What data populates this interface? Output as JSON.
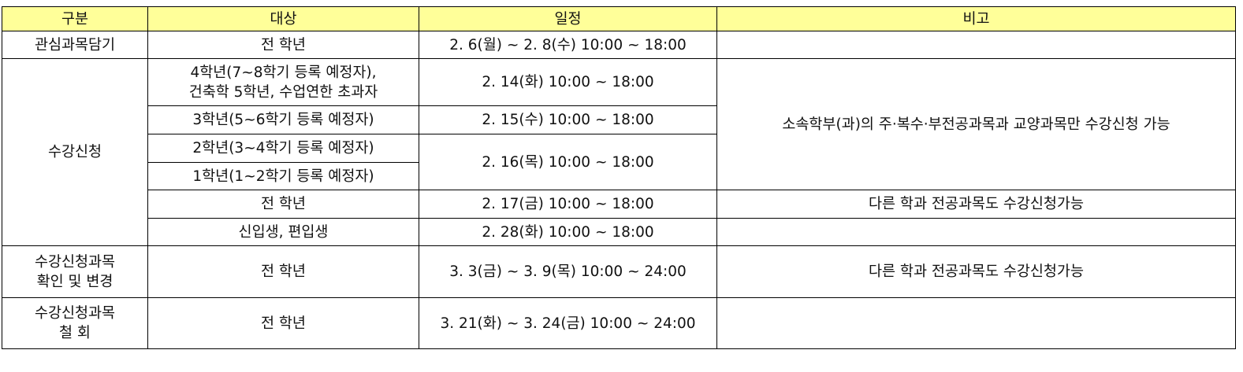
{
  "headers": [
    "구분",
    "대상",
    "일정",
    "비고"
  ],
  "rows": {
    "r1": {
      "category": "관심과목담기",
      "target": "전 학년",
      "schedule": "2. 6(월) ~ 2. 8(수) 10:00 ~ 18:00",
      "note": ""
    },
    "r2": {
      "category": "수강신청",
      "target_line1": "4학년(7~8학기 등록 예정자),",
      "target_line2": "건축학 5학년, 수업연한 초과자",
      "schedule": "2. 14(화) 10:00 ~ 18:00",
      "note": "소속학부(과)의 주·복수·부전공과목과 교양과목만 수강신청 가능"
    },
    "r3": {
      "target": "3학년(5~6학기 등록 예정자)",
      "schedule": "2. 15(수) 10:00 ~ 18:00"
    },
    "r4": {
      "target": "2학년(3~4학기 등록 예정자)",
      "schedule": "2. 16(목) 10:00 ~ 18:00"
    },
    "r5": {
      "target": "1학년(1~2학기 등록 예정자)"
    },
    "r6": {
      "target": "전 학년",
      "schedule": "2. 17(금) 10:00 ~ 18:00",
      "note": "다른 학과 전공과목도 수강신청가능"
    },
    "r7": {
      "target": "신입생, 편입생",
      "schedule": "2. 28(화) 10:00 ~ 18:00",
      "note": ""
    },
    "r8": {
      "category_line1": "수강신청과목",
      "category_line2": "확인 및 변경",
      "target": "전 학년",
      "schedule": "3. 3(금) ~ 3. 9(목) 10:00 ~ 24:00",
      "note": "다른 학과 전공과목도 수강신청가능"
    },
    "r9": {
      "category_line1": "수강신청과목",
      "category_line2": "철 회",
      "target": "전 학년",
      "schedule": "3. 21(화) ~ 3. 24(금) 10:00 ~ 24:00",
      "note": ""
    }
  },
  "colors": {
    "header_bg": "#ffff99",
    "border": "#000000"
  }
}
